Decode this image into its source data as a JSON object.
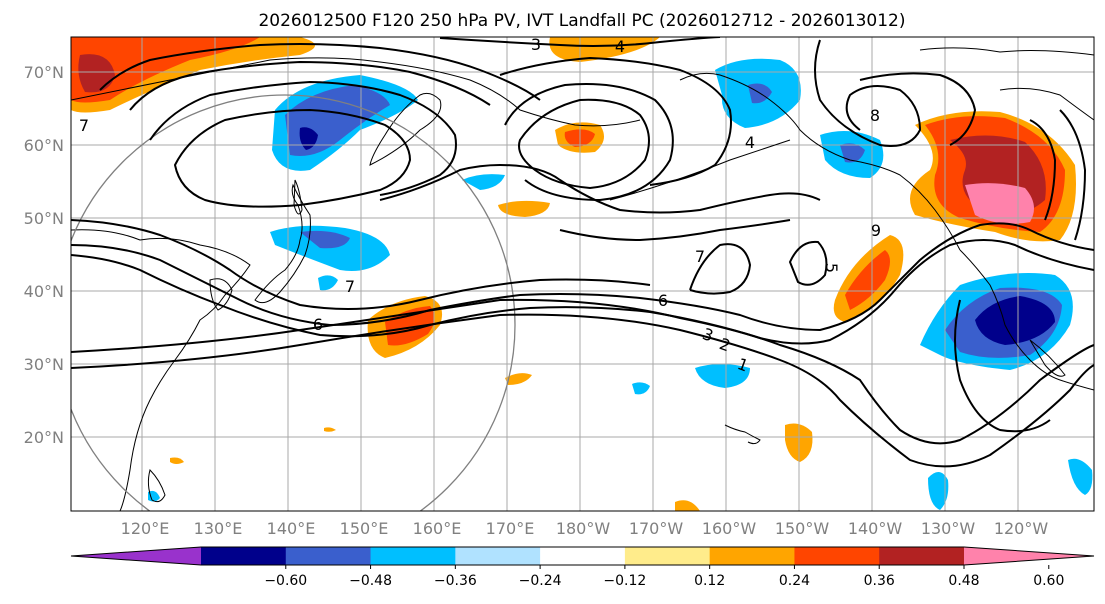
{
  "title": "2026012500 F120 250 hPa PV, IVT Landfall PC (2026012712 - 2026013012)",
  "lat_labels": [
    "70°N",
    "60°N",
    "50°N",
    "40°N",
    "30°N",
    "20°N"
  ],
  "lon_labels": [
    "120°E",
    "130°E",
    "140°E",
    "150°E",
    "160°E",
    "170°E",
    "180°W",
    "170°W",
    "160°W",
    "150°W",
    "140°W",
    "130°W",
    "120°W"
  ],
  "contour_labels": [
    "1",
    "2",
    "3",
    "4",
    "5",
    "6",
    "7",
    "8",
    "9"
  ],
  "colorbar": {
    "ticks": [
      "−0.60",
      "−0.48",
      "−0.36",
      "−0.24",
      "−0.12",
      "0.12",
      "0.24",
      "0.36",
      "0.48",
      "0.60"
    ],
    "colors": [
      "#9932CC",
      "#00008B",
      "#3A5FCD",
      "#00BFFF",
      "#B0E2FF",
      "#FFFFFF",
      "#FFEC8B",
      "#FFA500",
      "#FF4500",
      "#B22222",
      "#FF82AB"
    ]
  },
  "colors": {
    "coast": "#000000",
    "grid": "#a9a9a9",
    "contour": "#000000",
    "circle": "#808080"
  }
}
